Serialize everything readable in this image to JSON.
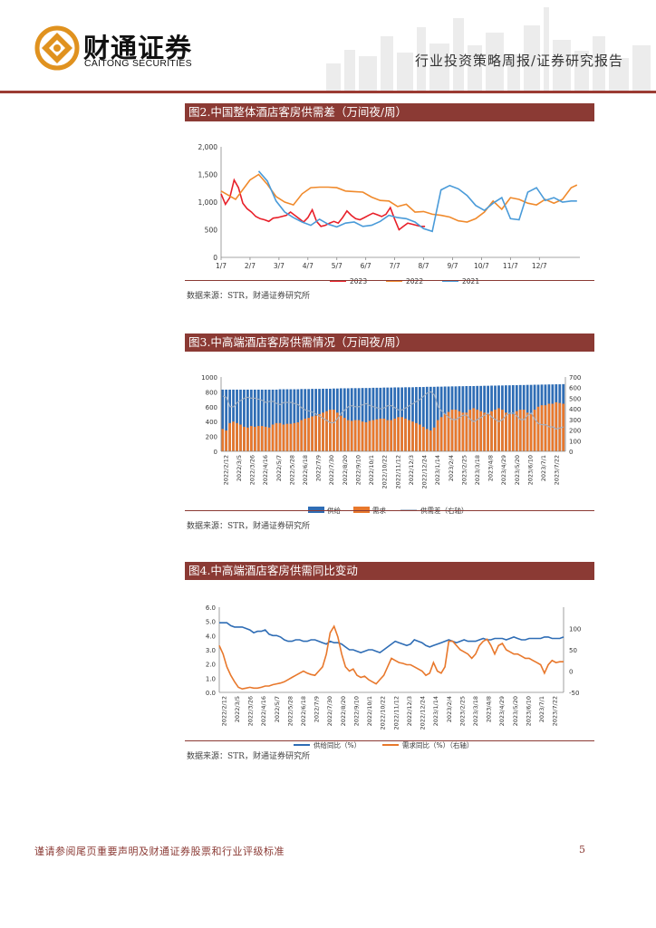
{
  "header": {
    "brand_cn": "财通证券",
    "brand_en": "CAITONG SECURITIES",
    "report_type": "行业投资策略周报/证券研究报告"
  },
  "figures": [
    {
      "title": "图2.中国整体酒店客房供需差（万间夜/周）",
      "source": "数据来源：STR，财通证券研究所",
      "chart_data": {
        "type": "line",
        "x_ticks": [
          "1/7",
          "2/7",
          "3/7",
          "4/7",
          "5/7",
          "6/7",
          "7/7",
          "8/7",
          "9/7",
          "10/7",
          "11/7",
          "12/7"
        ],
        "y_ticks": [
          "0",
          "500",
          "1,000",
          "1,500",
          "2,000"
        ],
        "ylim": [
          0,
          2000
        ],
        "legend": "bottom",
        "series": [
          {
            "name": "2023",
            "color": "#e8202a",
            "x": [
              0,
              0.15,
              0.3,
              0.45,
              0.6,
              0.75,
              0.9,
              1.05,
              1.2,
              1.35,
              1.5,
              1.65,
              1.8,
              1.95,
              2.1,
              2.25,
              2.4,
              2.55,
              2.7,
              2.85,
              3.0,
              3.15,
              3.3,
              3.45,
              3.6,
              3.75,
              3.9,
              4.05,
              4.2,
              4.35,
              4.5,
              4.65,
              4.8,
              4.95,
              5.1,
              5.25,
              5.4,
              5.55,
              5.7,
              5.85,
              6.0,
              6.15,
              6.3,
              6.45,
              6.6,
              6.75,
              6.9,
              7.05
            ],
            "values": [
              1150,
              960,
              1080,
              1400,
              1260,
              980,
              880,
              820,
              740,
              700,
              680,
              650,
              710,
              720,
              740,
              760,
              820,
              760,
              700,
              640,
              720,
              860,
              650,
              560,
              580,
              620,
              650,
              620,
              720,
              840,
              760,
              700,
              680,
              720,
              760,
              800,
              770,
              740,
              780,
              900,
              690,
              500,
              560,
              620,
              600,
              580,
              560,
              560
            ]
          },
          {
            "name": "2022",
            "color": "#f08a2c",
            "x": [
              0,
              0.5,
              1.0,
              1.3,
              1.6,
              1.9,
              2.2,
              2.5,
              2.8,
              3.1,
              3.4,
              3.7,
              4.0,
              4.3,
              4.6,
              4.9,
              5.2,
              5.5,
              5.8,
              6.1,
              6.4,
              6.7,
              7.0,
              7.3,
              7.6,
              7.9,
              8.2,
              8.5,
              8.8,
              9.1,
              9.4,
              9.7,
              10.0,
              10.3,
              10.6,
              10.9,
              11.2,
              11.5,
              11.8,
              12.1,
              12.3
            ],
            "values": [
              1200,
              1050,
              1400,
              1500,
              1320,
              1100,
              1000,
              950,
              1150,
              1260,
              1270,
              1270,
              1260,
              1200,
              1190,
              1180,
              1090,
              1030,
              1020,
              920,
              960,
              820,
              830,
              780,
              760,
              730,
              660,
              640,
              700,
              820,
              1020,
              870,
              1080,
              1050,
              980,
              950,
              1050,
              980,
              1050,
              1260,
              1310
            ]
          },
          {
            "name": "2021",
            "color": "#4a9bd9",
            "x": [
              1.3,
              1.6,
              1.9,
              2.2,
              2.5,
              2.8,
              3.1,
              3.4,
              3.7,
              4.0,
              4.3,
              4.6,
              4.9,
              5.2,
              5.5,
              5.8,
              6.1,
              6.4,
              6.7,
              7.0,
              7.3,
              7.6,
              7.9,
              8.2,
              8.5,
              8.8,
              9.1,
              9.4,
              9.7,
              10.0,
              10.3,
              10.6,
              10.9,
              11.2,
              11.5,
              11.8,
              12.1,
              12.3
            ],
            "values": [
              1560,
              1380,
              1020,
              820,
              720,
              640,
              580,
              690,
              600,
              550,
              620,
              640,
              560,
              580,
              650,
              760,
              720,
              700,
              640,
              520,
              470,
              1220,
              1300,
              1240,
              1120,
              940,
              850,
              980,
              1080,
              700,
              680,
              1180,
              1260,
              1030,
              1080,
              1000,
              1020,
              1020
            ]
          }
        ]
      }
    },
    {
      "title": "图3.中高端酒店客房供需情况（万间夜/周）",
      "source": "数据来源：STR，财通证券研究所",
      "chart_data": {
        "type": "bar",
        "x_ticks": [
          "2022/2/12",
          "2022/3/5",
          "2022/3/26",
          "2022/4/16",
          "2022/5/7",
          "2022/5/28",
          "2022/6/18",
          "2022/7/9",
          "2022/7/30",
          "2022/8/20",
          "2022/9/10",
          "2022/10/1",
          "2022/10/22",
          "2022/11/12",
          "2022/12/3",
          "2022/12/24",
          "2023/1/14",
          "2023/2/4",
          "2023/2/25",
          "2023/3/18",
          "2023/4/8",
          "2023/4/29",
          "2023/5/20",
          "2023/6/10",
          "2023/7/1",
          "2023/7/22"
        ],
        "y_left_ticks": [
          "0",
          "200",
          "400",
          "600",
          "800",
          "1000"
        ],
        "y_right_ticks": [
          "0",
          "100",
          "200",
          "300",
          "400",
          "500",
          "600",
          "700"
        ],
        "ylim_left": [
          0,
          1000
        ],
        "ylim_right": [
          0,
          700
        ],
        "legend": "bottom",
        "legend_labels": {
          "supply": "供给",
          "demand": "需求",
          "gap": "供需差（右轴）"
        },
        "supply_color": "#2f6db5",
        "demand_color": "#e8782c",
        "gap_color": "#a0aec0",
        "supply": [
          830,
          830,
          830,
          830,
          830,
          830,
          830,
          830,
          830,
          830,
          830,
          830,
          830,
          830,
          830,
          830,
          835,
          835,
          835,
          835,
          835,
          835,
          838,
          838,
          838,
          840,
          840,
          840,
          842,
          842,
          842,
          845,
          845,
          848,
          848,
          848,
          850,
          850,
          850,
          852,
          852,
          852,
          855,
          855,
          855,
          858,
          858,
          858,
          860,
          860,
          860,
          862,
          862,
          862,
          865,
          865,
          865,
          868,
          868,
          868,
          870,
          870,
          872,
          872,
          874,
          874,
          876,
          876,
          878,
          878,
          878,
          880,
          880,
          882,
          882,
          884,
          884,
          886,
          886,
          888,
          888,
          890,
          890,
          892,
          892,
          894,
          894,
          896,
          896,
          898,
          898,
          900,
          900,
          902,
          902,
          904
        ],
        "demand": [
          300,
          280,
          380,
          400,
          380,
          360,
          330,
          320,
          340,
          330,
          340,
          340,
          330,
          320,
          360,
          380,
          380,
          360,
          370,
          370,
          380,
          390,
          420,
          440,
          450,
          470,
          480,
          500,
          520,
          540,
          560,
          560,
          520,
          480,
          450,
          420,
          410,
          420,
          420,
          400,
          390,
          410,
          420,
          430,
          440,
          440,
          420,
          420,
          440,
          460,
          460,
          440,
          420,
          400,
          380,
          360,
          330,
          300,
          280,
          320,
          420,
          460,
          500,
          530,
          560,
          560,
          540,
          520,
          520,
          560,
          580,
          560,
          540,
          520,
          500,
          540,
          560,
          580,
          560,
          520,
          500,
          500,
          540,
          560,
          560,
          520,
          500,
          560,
          600,
          620,
          620,
          640,
          640,
          660,
          650,
          640
        ],
        "gap": [
          520,
          510,
          420,
          420,
          460,
          480,
          500,
          510,
          500,
          500,
          490,
          480,
          460,
          470,
          470,
          450,
          440,
          460,
          460,
          460,
          450,
          440,
          410,
          390,
          380,
          370,
          350,
          330,
          310,
          290,
          270,
          270,
          310,
          360,
          390,
          420,
          430,
          420,
          420,
          440,
          450,
          430,
          420,
          410,
          400,
          410,
          430,
          430,
          410,
          390,
          390,
          410,
          430,
          450,
          470,
          490,
          520,
          550,
          560,
          530,
          420,
          380,
          350,
          320,
          300,
          300,
          320,
          340,
          340,
          300,
          280,
          300,
          320,
          340,
          360,
          320,
          300,
          280,
          300,
          340,
          360,
          360,
          330,
          300,
          300,
          340,
          360,
          300,
          260,
          250,
          250,
          230,
          230,
          210,
          220,
          230
        ]
      }
    },
    {
      "title": "图4.中高端酒店客房供需同比变动",
      "source": "数据来源：STR，财通证券研究所",
      "chart_data": {
        "type": "line",
        "x_ticks": [
          "2022/2/12",
          "2022/3/5",
          "2022/3/26",
          "2022/4/16",
          "2022/5/7",
          "2022/5/28",
          "2022/6/18",
          "2022/7/9",
          "2022/7/30",
          "2022/8/20",
          "2022/9/10",
          "2022/10/1",
          "2022/10/22",
          "2022/11/12",
          "2022/12/3",
          "2022/12/24",
          "2023/1/14",
          "2023/2/4",
          "2023/2/25",
          "2023/3/18",
          "2023/4/8",
          "2023/4/29",
          "2023/5/20",
          "2023/6/10",
          "2023/7/1",
          "2023/7/22"
        ],
        "y_left_ticks": [
          "0.0",
          "1.0",
          "2.0",
          "3.0",
          "4.0",
          "5.0",
          "6.0"
        ],
        "y_right_ticks": [
          "-50",
          "0",
          "50",
          "100"
        ],
        "ylim_left": [
          0,
          6
        ],
        "ylim_right": [
          -50,
          150
        ],
        "legend": "bottom",
        "series": [
          {
            "name": "供给同比（%）",
            "axis": "left",
            "color": "#2f6db5",
            "values": [
              4.9,
              4.9,
              4.9,
              4.7,
              4.6,
              4.6,
              4.6,
              4.5,
              4.4,
              4.2,
              4.3,
              4.3,
              4.4,
              4.1,
              4.0,
              4.0,
              3.9,
              3.7,
              3.6,
              3.6,
              3.7,
              3.7,
              3.6,
              3.6,
              3.7,
              3.7,
              3.6,
              3.5,
              3.4,
              3.6,
              3.5,
              3.5,
              3.4,
              3.2,
              3.0,
              3.0,
              2.9,
              2.8,
              2.9,
              3.0,
              3.0,
              2.9,
              2.8,
              3.0,
              3.2,
              3.4,
              3.6,
              3.5,
              3.4,
              3.3,
              3.4,
              3.7,
              3.6,
              3.5,
              3.3,
              3.2,
              3.3,
              3.4,
              3.5,
              3.6,
              3.7,
              3.6,
              3.5,
              3.6,
              3.7,
              3.6,
              3.6,
              3.6,
              3.7,
              3.8,
              3.7,
              3.7,
              3.8,
              3.8,
              3.8,
              3.7,
              3.8,
              3.9,
              3.8,
              3.7,
              3.7,
              3.8,
              3.8,
              3.8,
              3.8,
              3.9,
              3.9,
              3.8,
              3.8,
              3.8,
              3.9
            ]
          },
          {
            "name": "需求同比（%）（右轴）",
            "axis": "right",
            "color": "#e8782c",
            "values": [
              60,
              40,
              10,
              -10,
              -25,
              -38,
              -42,
              -40,
              -38,
              -40,
              -40,
              -38,
              -35,
              -35,
              -32,
              -30,
              -28,
              -25,
              -20,
              -15,
              -10,
              -5,
              0,
              -5,
              -8,
              -10,
              0,
              10,
              40,
              90,
              105,
              80,
              40,
              10,
              0,
              5,
              -10,
              -15,
              -12,
              -20,
              -25,
              -30,
              -20,
              -10,
              10,
              30,
              25,
              20,
              18,
              15,
              15,
              10,
              5,
              0,
              -10,
              -5,
              20,
              0,
              -5,
              10,
              70,
              70,
              60,
              50,
              45,
              40,
              30,
              40,
              60,
              70,
              75,
              60,
              40,
              60,
              65,
              50,
              45,
              40,
              40,
              35,
              30,
              30,
              25,
              20,
              15,
              -5,
              15,
              25,
              20,
              22,
              22
            ]
          }
        ]
      }
    }
  ],
  "footer": {
    "disclaimer": "谨请参阅尾页重要声明及财通证券股票和行业评级标准",
    "page_number": "5"
  }
}
